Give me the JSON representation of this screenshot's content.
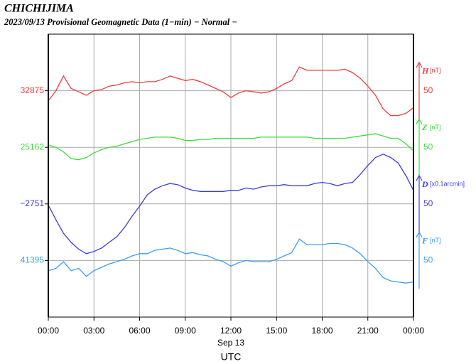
{
  "chart_data": {
    "type": "line",
    "title": "CHICHIJIMA",
    "subtitle": "2023/09/13  Provisional Geomagnetic Data (1−min)  − Normal −",
    "xlabel_date": "Sep 13",
    "xlabel": "UTC",
    "grid": true,
    "xlim": [
      0,
      24
    ],
    "xticks": [
      {
        "value": 0,
        "label": "00:00"
      },
      {
        "value": 3,
        "label": "03:00"
      },
      {
        "value": 6,
        "label": "06:00"
      },
      {
        "value": 9,
        "label": "09:00"
      },
      {
        "value": 12,
        "label": "12:00"
      },
      {
        "value": 15,
        "label": "15:00"
      },
      {
        "value": 18,
        "label": "18:00"
      },
      {
        "value": 21,
        "label": "21:00"
      },
      {
        "value": 24,
        "label": "00:00"
      }
    ],
    "x": [
      0,
      0.5,
      1,
      1.5,
      2,
      2.5,
      3,
      3.5,
      4,
      4.5,
      5,
      5.5,
      6,
      6.5,
      7,
      7.5,
      8,
      8.5,
      9,
      9.5,
      10,
      10.5,
      11,
      11.5,
      12,
      12.5,
      13,
      13.5,
      14,
      14.5,
      15,
      15.5,
      16,
      16.5,
      17,
      17.5,
      18,
      18.5,
      19,
      19.5,
      20,
      20.5,
      21,
      21.5,
      22,
      22.5,
      23,
      23.5,
      24
    ],
    "series": [
      {
        "name": "H",
        "unit": "[nT]",
        "color": "#f03c3c",
        "ylim": [
          32675,
          32925
        ],
        "yticks": [
          32875
        ],
        "scale": 50,
        "values": [
          32866,
          32875,
          32888,
          32877,
          32874,
          32871,
          32875,
          32876,
          32879,
          32880,
          32882,
          32883,
          32882,
          32883,
          32883,
          32885,
          32888,
          32886,
          32884,
          32885,
          32883,
          32880,
          32877,
          32874,
          32869,
          32873,
          32875,
          32874,
          32873,
          32874,
          32877,
          32881,
          32884,
          32896,
          32893,
          32893,
          32893,
          32893,
          32893,
          32894,
          32891,
          32886,
          32879,
          32871,
          32859,
          32853,
          32853,
          32855,
          32860
        ]
      },
      {
        "name": "Z",
        "unit": "[nT]",
        "color": "#3cdc3c",
        "ylim": [
          25012,
          25262
        ],
        "yticks": [
          25162
        ],
        "scale": 50,
        "values": [
          25164,
          25162,
          25158,
          25152,
          25151,
          25153,
          25157,
          25160,
          25162,
          25163,
          25165,
          25167,
          25169,
          25170,
          25171,
          25171,
          25171,
          25170,
          25168,
          25168,
          25169,
          25169,
          25170,
          25170,
          25170,
          25170,
          25170,
          25170,
          25171,
          25171,
          25171,
          25171,
          25171,
          25171,
          25171,
          25170,
          25170,
          25170,
          25170,
          25170,
          25171,
          25172,
          25173,
          25174,
          25172,
          25170,
          25170,
          25165,
          25159
        ]
      },
      {
        "name": "D",
        "unit": "[x0.1arcmin]",
        "color": "#3c3ce6",
        "ylim": [
          -2851,
          -2601
        ],
        "yticks": [
          {
            "value": -2751,
            "label": "−2751"
          }
        ],
        "scale": 50,
        "values": [
          -2752,
          -2765,
          -2777,
          -2785,
          -2791,
          -2795,
          -2793,
          -2790,
          -2785,
          -2780,
          -2772,
          -2762,
          -2753,
          -2743,
          -2738,
          -2735,
          -2733,
          -2734,
          -2737,
          -2739,
          -2740,
          -2740,
          -2740,
          -2740,
          -2739,
          -2739,
          -2737,
          -2738,
          -2736,
          -2735,
          -2735,
          -2734,
          -2735,
          -2735,
          -2735,
          -2733,
          -2732,
          -2733,
          -2735,
          -2733,
          -2732,
          -2725,
          -2717,
          -2710,
          -2707,
          -2710,
          -2715,
          -2726,
          -2739
        ]
      },
      {
        "name": "F",
        "unit": "[nT]",
        "color": "#3c9cf0",
        "ylim": [
          41345,
          41595
        ],
        "yticks": [
          41395
        ],
        "scale": 50,
        "values": [
          41386,
          41388,
          41394,
          41386,
          41388,
          41381,
          41386,
          41389,
          41392,
          41394,
          41396,
          41399,
          41401,
          41401,
          41404,
          41405,
          41406,
          41404,
          41401,
          41402,
          41400,
          41399,
          41396,
          41394,
          41390,
          41393,
          41395,
          41394,
          41394,
          41394,
          41396,
          41399,
          41402,
          41414,
          41409,
          41409,
          41409,
          41410,
          41410,
          41409,
          41406,
          41401,
          41394,
          41388,
          41380,
          41377,
          41376,
          41375,
          41376
        ]
      }
    ]
  }
}
